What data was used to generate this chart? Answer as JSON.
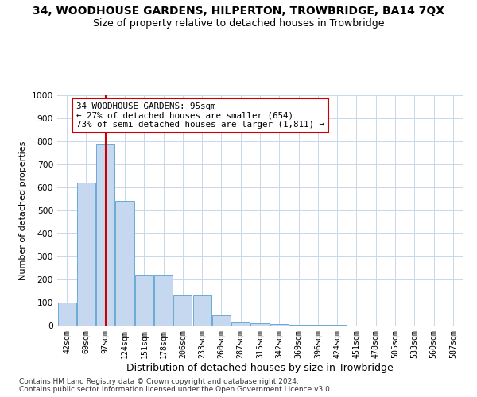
{
  "title": "34, WOODHOUSE GARDENS, HILPERTON, TROWBRIDGE, BA14 7QX",
  "subtitle": "Size of property relative to detached houses in Trowbridge",
  "xlabel": "Distribution of detached houses by size in Trowbridge",
  "ylabel": "Number of detached properties",
  "bar_labels": [
    "42sqm",
    "69sqm",
    "97sqm",
    "124sqm",
    "151sqm",
    "178sqm",
    "206sqm",
    "233sqm",
    "260sqm",
    "287sqm",
    "315sqm",
    "342sqm",
    "369sqm",
    "396sqm",
    "424sqm",
    "451sqm",
    "478sqm",
    "505sqm",
    "533sqm",
    "560sqm",
    "587sqm"
  ],
  "bar_values": [
    100,
    620,
    790,
    540,
    220,
    220,
    130,
    130,
    45,
    15,
    12,
    8,
    5,
    3,
    2,
    1,
    1,
    1,
    1,
    1,
    1
  ],
  "bar_color": "#c5d8f0",
  "bar_edge_color": "#6aaad4",
  "vline_x": 2,
  "vline_color": "#cc0000",
  "ylim": [
    0,
    1000
  ],
  "yticks": [
    0,
    100,
    200,
    300,
    400,
    500,
    600,
    700,
    800,
    900,
    1000
  ],
  "annotation_box_text": "34 WOODHOUSE GARDENS: 95sqm\n← 27% of detached houses are smaller (654)\n73% of semi-detached houses are larger (1,811) →",
  "annotation_box_color": "#ffffff",
  "annotation_box_edge_color": "#cc0000",
  "footer_text": "Contains HM Land Registry data © Crown copyright and database right 2024.\nContains public sector information licensed under the Open Government Licence v3.0.",
  "background_color": "#ffffff",
  "grid_color": "#c8d8ea",
  "title_fontsize": 10,
  "subtitle_fontsize": 9,
  "tick_fontsize": 7.2
}
